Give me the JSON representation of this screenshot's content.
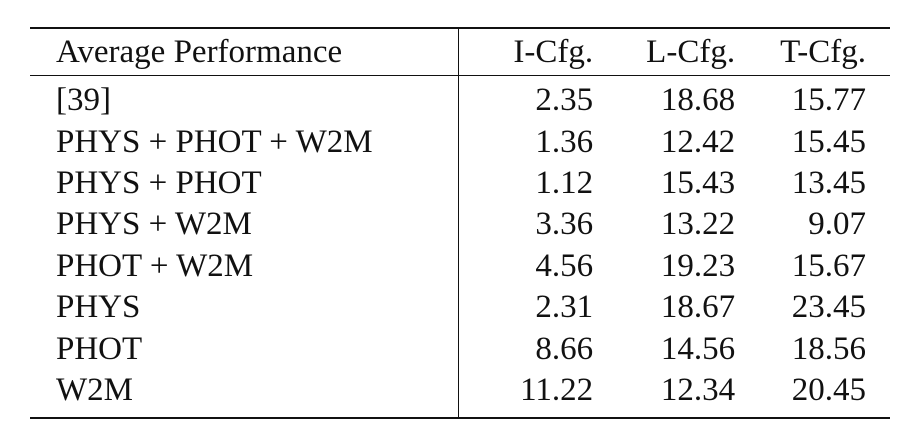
{
  "table": {
    "headers": {
      "method": "Average Performance",
      "c1": "I-Cfg.",
      "c2": "L-Cfg.",
      "c3": "T-Cfg."
    },
    "rows": [
      {
        "method": "[39]",
        "c1": "2.35",
        "c2": "18.68",
        "c3": "15.77"
      },
      {
        "method": "PHYS + PHOT + W2M",
        "c1": "1.36",
        "c2": "12.42",
        "c3": "15.45"
      },
      {
        "method": "PHYS + PHOT",
        "c1": "1.12",
        "c2": "15.43",
        "c3": "13.45"
      },
      {
        "method": "PHYS + W2M",
        "c1": "3.36",
        "c2": "13.22",
        "c3": "9.07"
      },
      {
        "method": "PHOT + W2M",
        "c1": "4.56",
        "c2": "19.23",
        "c3": "15.67"
      },
      {
        "method": "PHYS",
        "c1": "2.31",
        "c2": "18.67",
        "c3": "23.45"
      },
      {
        "method": "PHOT",
        "c1": "8.66",
        "c2": "14.56",
        "c3": "18.56"
      },
      {
        "method": "W2M",
        "c1": "11.22",
        "c2": "12.34",
        "c3": "20.45"
      }
    ]
  }
}
